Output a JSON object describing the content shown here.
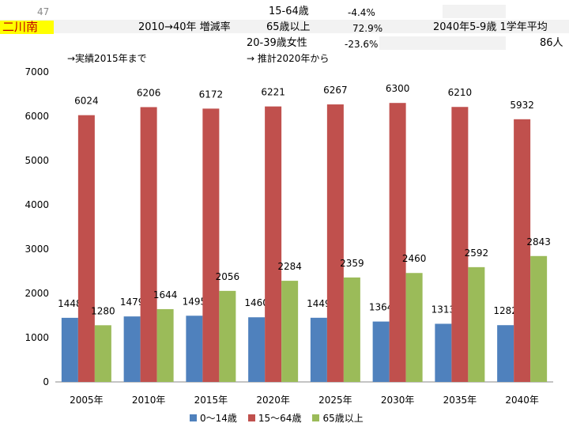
{
  "header": {
    "code": "47",
    "area_name": "二川南",
    "rate_label": "2010→40年 増減率",
    "rows": [
      {
        "label": "15-64歳",
        "value": "-4.4%"
      },
      {
        "label": "65歳以上",
        "value": "72.9%"
      },
      {
        "label": "20-39歳女性",
        "value": "-23.6%"
      }
    ],
    "grade_label": "2040年5-9歳 1学年平均",
    "grade_value": "86人",
    "note_actual": "→実績2015年まで",
    "note_projection": "→ 推計2020年から"
  },
  "colors": {
    "area_highlight": "#ffff00",
    "area_text": "#c00000",
    "cell_bg": "#f2f2f2"
  },
  "chart_data": {
    "type": "bar",
    "categories": [
      "2005年",
      "2010年",
      "2015年",
      "2020年",
      "2025年",
      "2030年",
      "2035年",
      "2040年"
    ],
    "series": [
      {
        "name": "0～14歳",
        "color": "#4f81bd",
        "values": [
          1448,
          1479,
          1495,
          1460,
          1449,
          1364,
          1313,
          1282
        ]
      },
      {
        "name": "15～64歳",
        "color": "#c0504d",
        "values": [
          6024,
          6206,
          6172,
          6221,
          6267,
          6300,
          6210,
          5932
        ]
      },
      {
        "name": "65歳以上",
        "color": "#9bbb59",
        "values": [
          1280,
          1644,
          2056,
          2284,
          2359,
          2460,
          2592,
          2843
        ]
      }
    ],
    "ylim": [
      0,
      7000
    ],
    "yticks": [
      0,
      1000,
      2000,
      3000,
      4000,
      5000,
      6000,
      7000
    ],
    "grid": false,
    "legend_position": "bottom"
  }
}
